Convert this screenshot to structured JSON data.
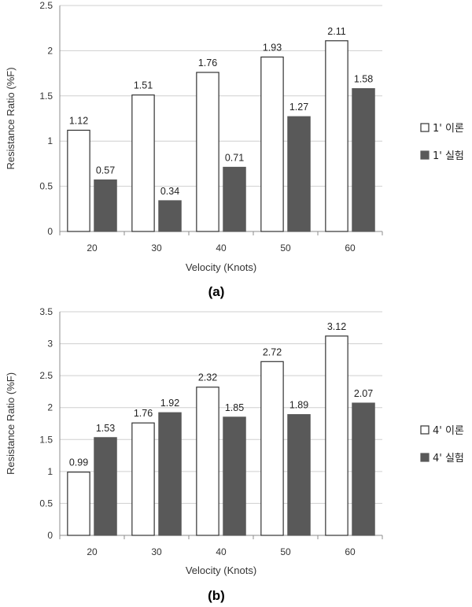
{
  "chart_data": [
    {
      "type": "bar",
      "panel_label": "(a)",
      "categories": [
        "20",
        "30",
        "40",
        "50",
        "60"
      ],
      "series": [
        {
          "name": "1' 이론",
          "values": [
            1.12,
            1.51,
            1.76,
            1.93,
            2.11
          ],
          "fill": "#ffffff",
          "stroke": "#333333"
        },
        {
          "name": "1' 실험",
          "values": [
            0.57,
            0.34,
            0.71,
            1.27,
            1.58
          ],
          "fill": "#595959",
          "stroke": "#595959"
        }
      ],
      "data_labels": [
        [
          "1.12",
          "1.51",
          "1.76",
          "1.93",
          "2.11"
        ],
        [
          "0.57",
          "0.34",
          "0.71",
          "1.27",
          "1.58"
        ]
      ],
      "yticks": [
        "0",
        "0.5",
        "1",
        "1.5",
        "2",
        "2.5"
      ],
      "ylim": [
        0,
        2.5
      ],
      "xlabel": "Velocity (Knots)",
      "ylabel": "Resistance Ratio (%F)",
      "grid": true,
      "legend_position": "right"
    },
    {
      "type": "bar",
      "panel_label": "(b)",
      "categories": [
        "20",
        "30",
        "40",
        "50",
        "60"
      ],
      "series": [
        {
          "name": "4' 이론",
          "values": [
            0.99,
            1.76,
            2.32,
            2.72,
            3.12
          ],
          "fill": "#ffffff",
          "stroke": "#333333"
        },
        {
          "name": "4' 실험",
          "values": [
            1.53,
            1.92,
            1.85,
            1.89,
            2.07
          ],
          "fill": "#595959",
          "stroke": "#595959"
        }
      ],
      "data_labels": [
        [
          "0.99",
          "1.76",
          "2.32",
          "2.72",
          "3.12"
        ],
        [
          "1.53",
          "1.92",
          "1.85",
          "1.89",
          "2.07"
        ]
      ],
      "yticks": [
        "0",
        "0.5",
        "1",
        "1.5",
        "2",
        "2.5",
        "3",
        "3.5"
      ],
      "ylim": [
        0,
        3.5
      ],
      "xlabel": "Velocity (Knots)",
      "ylabel": "Resistance Ratio (%F)",
      "grid": true,
      "legend_position": "right"
    }
  ]
}
